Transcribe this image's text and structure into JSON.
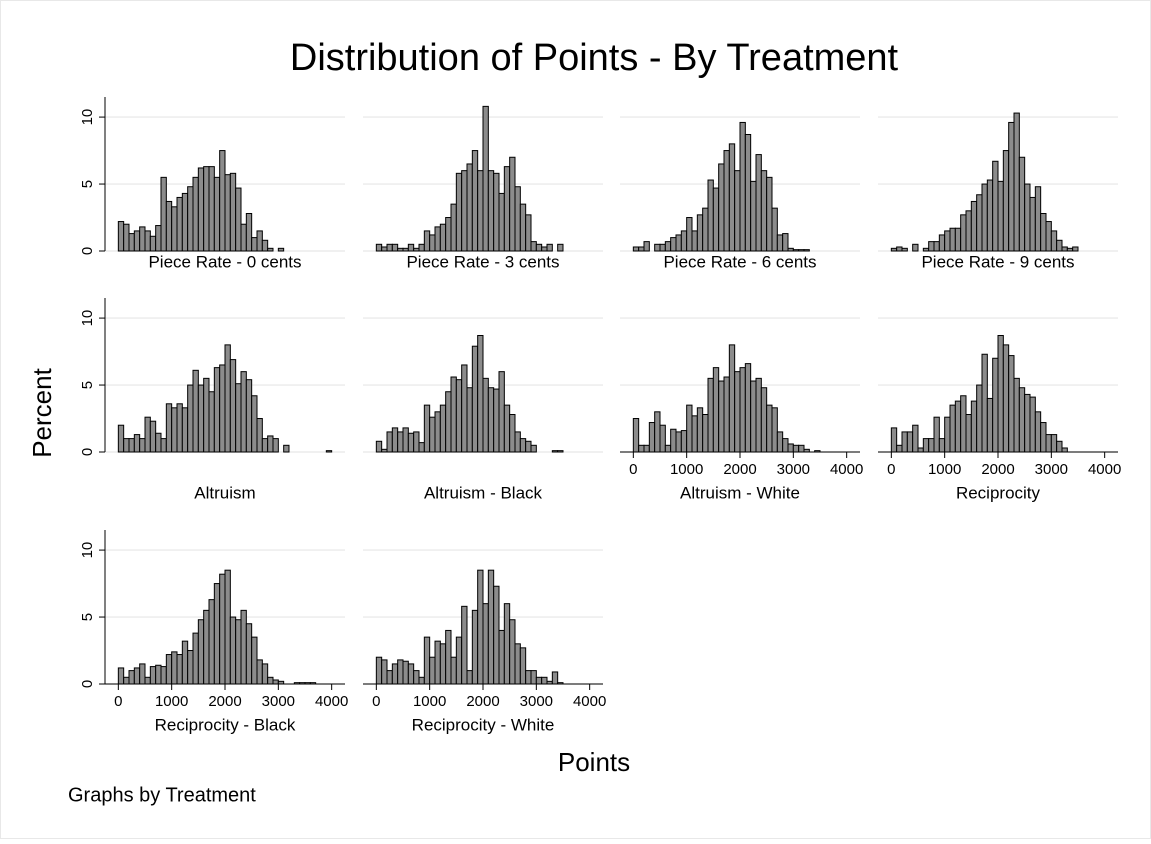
{
  "title": "Distribution of Points - By Treatment",
  "x_label": "Points",
  "y_label": "Percent",
  "note": "Graphs by Treatment",
  "chart_data": [
    {
      "type": "histogram",
      "title": "Piece Rate - 0 cents",
      "color": "#8c8c8c",
      "bins": [
        0,
        100,
        200,
        300,
        400,
        500,
        600,
        700,
        800,
        900,
        1000,
        1100,
        1200,
        1300,
        1400,
        1500,
        1600,
        1700,
        1800,
        1900,
        2000,
        2100,
        2200,
        2300,
        2400,
        2500,
        2600,
        2700,
        2800,
        2900,
        3000,
        3100,
        3200,
        3300,
        3400,
        3500,
        3600,
        3700,
        3800,
        3900,
        4000
      ],
      "values": [
        2.2,
        2.0,
        1.3,
        1.5,
        1.8,
        1.5,
        1.1,
        1.9,
        5.5,
        3.7,
        3.3,
        4.0,
        4.3,
        4.8,
        5.5,
        6.2,
        6.3,
        6.3,
        5.5,
        7.5,
        5.7,
        5.8,
        4.7,
        2.0,
        2.8,
        1.0,
        1.5,
        0.8,
        0.2,
        0,
        0.2,
        0,
        0,
        0,
        0,
        0,
        0,
        0,
        0,
        0
      ],
      "xlim": [
        -250,
        4250
      ],
      "ylim": [
        0,
        11.5
      ],
      "yticks": [
        0,
        5,
        10
      ],
      "grid": true
    },
    {
      "type": "histogram",
      "title": "Piece Rate - 3 cents",
      "color": "#8c8c8c",
      "bins": [
        0,
        100,
        200,
        300,
        400,
        500,
        600,
        700,
        800,
        900,
        1000,
        1100,
        1200,
        1300,
        1400,
        1500,
        1600,
        1700,
        1800,
        1900,
        2000,
        2100,
        2200,
        2300,
        2400,
        2500,
        2600,
        2700,
        2800,
        2900,
        3000,
        3100,
        3200,
        3300,
        3400,
        3500,
        3600,
        3700,
        3800,
        3900,
        4000
      ],
      "values": [
        0.5,
        0.3,
        0.5,
        0.5,
        0.2,
        0.2,
        0.5,
        0.2,
        0.5,
        1.5,
        1.2,
        1.8,
        2.0,
        2.5,
        3.5,
        5.8,
        6.0,
        6.5,
        7.5,
        6.0,
        10.8,
        6.0,
        5.8,
        4.3,
        6.3,
        7.0,
        4.8,
        3.5,
        2.7,
        0.7,
        0.5,
        0.3,
        0.5,
        0,
        0.5,
        0,
        0,
        0,
        0,
        0
      ],
      "xlim": [
        -250,
        4250
      ],
      "ylim": [
        0,
        11.5
      ],
      "yticks": [
        0,
        5,
        10
      ],
      "grid": true
    },
    {
      "type": "histogram",
      "title": "Piece Rate - 6 cents",
      "color": "#8c8c8c",
      "bins": [
        0,
        100,
        200,
        300,
        400,
        500,
        600,
        700,
        800,
        900,
        1000,
        1100,
        1200,
        1300,
        1400,
        1500,
        1600,
        1700,
        1800,
        1900,
        2000,
        2100,
        2200,
        2300,
        2400,
        2500,
        2600,
        2700,
        2800,
        2900,
        3000,
        3100,
        3200,
        3300,
        3400,
        3500,
        3600,
        3700,
        3800,
        3900,
        4000
      ],
      "values": [
        0.3,
        0.3,
        0.7,
        0,
        0.5,
        0.5,
        0.7,
        1.0,
        1.2,
        1.5,
        2.5,
        1.5,
        2.7,
        3.2,
        5.3,
        4.7,
        6.5,
        7.5,
        8.0,
        6.0,
        9.6,
        8.7,
        5.2,
        7.2,
        6.0,
        5.5,
        3.2,
        1.2,
        1.3,
        0.2,
        0.1,
        0.1,
        0.1,
        0,
        0,
        0,
        0,
        0,
        0,
        0
      ],
      "xlim": [
        -250,
        4250
      ],
      "ylim": [
        0,
        11.5
      ],
      "yticks": [
        0,
        5,
        10
      ],
      "grid": true
    },
    {
      "type": "histogram",
      "title": "Piece Rate - 9 cents",
      "color": "#8c8c8c",
      "bins": [
        0,
        100,
        200,
        300,
        400,
        500,
        600,
        700,
        800,
        900,
        1000,
        1100,
        1200,
        1300,
        1400,
        1500,
        1600,
        1700,
        1800,
        1900,
        2000,
        2100,
        2200,
        2300,
        2400,
        2500,
        2600,
        2700,
        2800,
        2900,
        3000,
        3100,
        3200,
        3300,
        3400,
        3500,
        3600,
        3700,
        3800,
        3900,
        4000
      ],
      "values": [
        0.2,
        0.3,
        0.2,
        0,
        0.5,
        0,
        0.2,
        0.7,
        0.7,
        1.2,
        1.5,
        1.7,
        1.7,
        2.7,
        3.0,
        3.7,
        4.2,
        5.0,
        5.3,
        6.7,
        5.2,
        7.5,
        9.6,
        10.3,
        7.0,
        5.0,
        4.0,
        4.8,
        2.8,
        2.2,
        1.5,
        0.8,
        0.3,
        0.2,
        0.3,
        0,
        0,
        0,
        0,
        0
      ],
      "xlim": [
        -250,
        4250
      ],
      "ylim": [
        0,
        11.5
      ],
      "yticks": [
        0,
        5,
        10
      ],
      "grid": true
    },
    {
      "type": "histogram",
      "title": "Altruism",
      "color": "#8c8c8c",
      "bins": [
        0,
        100,
        200,
        300,
        400,
        500,
        600,
        700,
        800,
        900,
        1000,
        1100,
        1200,
        1300,
        1400,
        1500,
        1600,
        1700,
        1800,
        1900,
        2000,
        2100,
        2200,
        2300,
        2400,
        2500,
        2600,
        2700,
        2800,
        2900,
        3000,
        3100,
        3200,
        3300,
        3400,
        3500,
        3600,
        3700,
        3800,
        3900,
        4000
      ],
      "values": [
        2.0,
        1.0,
        1.0,
        1.3,
        1.0,
        2.6,
        2.3,
        1.4,
        1.0,
        3.6,
        3.3,
        3.6,
        3.3,
        5.0,
        6.1,
        5.0,
        5.5,
        4.5,
        6.3,
        6.5,
        8.0,
        6.9,
        5.1,
        6.0,
        5.4,
        4.2,
        2.5,
        1.0,
        1.2,
        1.0,
        0,
        0.5,
        0,
        0,
        0,
        0,
        0,
        0,
        0,
        0.1
      ],
      "xlim": [
        -250,
        4250
      ],
      "ylim": [
        0,
        11.5
      ],
      "yticks": [
        0,
        5,
        10
      ],
      "grid": true
    },
    {
      "type": "histogram",
      "title": "Altruism - Black",
      "color": "#8c8c8c",
      "bins": [
        0,
        100,
        200,
        300,
        400,
        500,
        600,
        700,
        800,
        900,
        1000,
        1100,
        1200,
        1300,
        1400,
        1500,
        1600,
        1700,
        1800,
        1900,
        2000,
        2100,
        2200,
        2300,
        2400,
        2500,
        2600,
        2700,
        2800,
        2900,
        3000,
        3100,
        3200,
        3300,
        3400,
        3500,
        3600,
        3700,
        3800,
        3900,
        4000
      ],
      "values": [
        0.8,
        0.2,
        1.5,
        1.8,
        1.5,
        1.8,
        1.4,
        1.5,
        0.7,
        3.5,
        2.6,
        3.0,
        3.5,
        4.5,
        5.6,
        5.4,
        6.5,
        4.8,
        7.9,
        8.7,
        5.5,
        4.8,
        4.7,
        6.0,
        3.5,
        2.8,
        1.5,
        1.0,
        0.8,
        0.5,
        0,
        0,
        0,
        0.1,
        0.1,
        0,
        0,
        0,
        0,
        0
      ],
      "xlim": [
        -250,
        4250
      ],
      "ylim": [
        0,
        11.5
      ],
      "yticks": [
        0,
        5,
        10
      ],
      "grid": true
    },
    {
      "type": "histogram",
      "title": "Altruism - White",
      "color": "#8c8c8c",
      "bins": [
        0,
        100,
        200,
        300,
        400,
        500,
        600,
        700,
        800,
        900,
        1000,
        1100,
        1200,
        1300,
        1400,
        1500,
        1600,
        1700,
        1800,
        1900,
        2000,
        2100,
        2200,
        2300,
        2400,
        2500,
        2600,
        2700,
        2800,
        2900,
        3000,
        3100,
        3200,
        3300,
        3400,
        3500,
        3600,
        3700,
        3800,
        3900,
        4000
      ],
      "values": [
        2.5,
        0.5,
        0.5,
        2.2,
        3.0,
        2.0,
        0.5,
        1.7,
        1.5,
        1.6,
        3.5,
        2.7,
        3.3,
        2.8,
        5.5,
        6.3,
        5.3,
        5.6,
        8.0,
        6.0,
        6.3,
        6.6,
        5.3,
        5.5,
        4.8,
        3.5,
        3.3,
        1.5,
        1.0,
        0.6,
        0.5,
        0.5,
        0.2,
        0,
        0.1,
        0,
        0,
        0,
        0,
        0
      ],
      "xlim": [
        -250,
        4250
      ],
      "ylim": [
        0,
        11.5
      ],
      "xticks": [
        0,
        1000,
        2000,
        3000,
        4000
      ],
      "yticks": [
        0,
        5,
        10
      ],
      "grid": true
    },
    {
      "type": "histogram",
      "title": "Reciprocity",
      "color": "#8c8c8c",
      "bins": [
        0,
        100,
        200,
        300,
        400,
        500,
        600,
        700,
        800,
        900,
        1000,
        1100,
        1200,
        1300,
        1400,
        1500,
        1600,
        1700,
        1800,
        1900,
        2000,
        2100,
        2200,
        2300,
        2400,
        2500,
        2600,
        2700,
        2800,
        2900,
        3000,
        3100,
        3200,
        3300,
        3400,
        3500,
        3600,
        3700,
        3800,
        3900,
        4000
      ],
      "values": [
        1.8,
        0.5,
        1.5,
        1.5,
        2.0,
        0.3,
        1.0,
        1.0,
        2.6,
        1.0,
        2.6,
        3.5,
        3.8,
        4.2,
        2.8,
        3.8,
        5.0,
        7.3,
        4.0,
        7.0,
        8.7,
        8.0,
        7.2,
        5.5,
        4.8,
        4.3,
        4.1,
        3.0,
        2.2,
        1.3,
        1.3,
        0.8,
        0.3,
        0,
        0,
        0,
        0,
        0,
        0,
        0
      ],
      "xlim": [
        -250,
        4250
      ],
      "ylim": [
        0,
        11.5
      ],
      "xticks": [
        0,
        1000,
        2000,
        3000,
        4000
      ],
      "yticks": [
        0,
        5,
        10
      ],
      "grid": true
    },
    {
      "type": "histogram",
      "title": "Reciprocity - Black",
      "color": "#8c8c8c",
      "bins": [
        0,
        100,
        200,
        300,
        400,
        500,
        600,
        700,
        800,
        900,
        1000,
        1100,
        1200,
        1300,
        1400,
        1500,
        1600,
        1700,
        1800,
        1900,
        2000,
        2100,
        2200,
        2300,
        2400,
        2500,
        2600,
        2700,
        2800,
        2900,
        3000,
        3100,
        3200,
        3300,
        3400,
        3500,
        3600,
        3700,
        3800,
        3900,
        4000
      ],
      "values": [
        1.2,
        0.5,
        1.0,
        1.2,
        1.5,
        0.5,
        1.3,
        1.4,
        1.3,
        2.2,
        2.4,
        2.2,
        3.2,
        2.5,
        3.8,
        4.8,
        5.5,
        6.3,
        7.5,
        8.2,
        8.5,
        5.0,
        4.8,
        5.5,
        4.5,
        3.5,
        1.8,
        1.5,
        0.5,
        0.3,
        0.2,
        0,
        0,
        0.1,
        0.1,
        0.1,
        0.1,
        0,
        0,
        0
      ],
      "xlim": [
        -250,
        4250
      ],
      "ylim": [
        0,
        11.5
      ],
      "xticks": [
        0,
        1000,
        2000,
        3000,
        4000
      ],
      "yticks": [
        0,
        5,
        10
      ],
      "grid": true
    },
    {
      "type": "histogram",
      "title": "Reciprocity - White",
      "color": "#8c8c8c",
      "bins": [
        0,
        100,
        200,
        300,
        400,
        500,
        600,
        700,
        800,
        900,
        1000,
        1100,
        1200,
        1300,
        1400,
        1500,
        1600,
        1700,
        1800,
        1900,
        2000,
        2100,
        2200,
        2300,
        2400,
        2500,
        2600,
        2700,
        2800,
        2900,
        3000,
        3100,
        3200,
        3300,
        3400,
        3500,
        3600,
        3700,
        3800,
        3900,
        4000
      ],
      "values": [
        2.0,
        1.8,
        1.0,
        1.5,
        1.8,
        1.7,
        1.5,
        1.0,
        0.5,
        3.5,
        2.0,
        3.2,
        3.0,
        4.0,
        2.0,
        3.5,
        5.8,
        1.0,
        5.5,
        8.5,
        6.0,
        8.5,
        7.3,
        4.0,
        6.0,
        4.8,
        3.0,
        2.7,
        1.0,
        1.0,
        0.5,
        0.5,
        0.2,
        0.9,
        0.1,
        0,
        0,
        0,
        0,
        0
      ],
      "xlim": [
        -250,
        4250
      ],
      "ylim": [
        0,
        11.5
      ],
      "xticks": [
        0,
        1000,
        2000,
        3000,
        4000
      ],
      "yticks": [
        0,
        5,
        10
      ],
      "grid": true
    }
  ]
}
